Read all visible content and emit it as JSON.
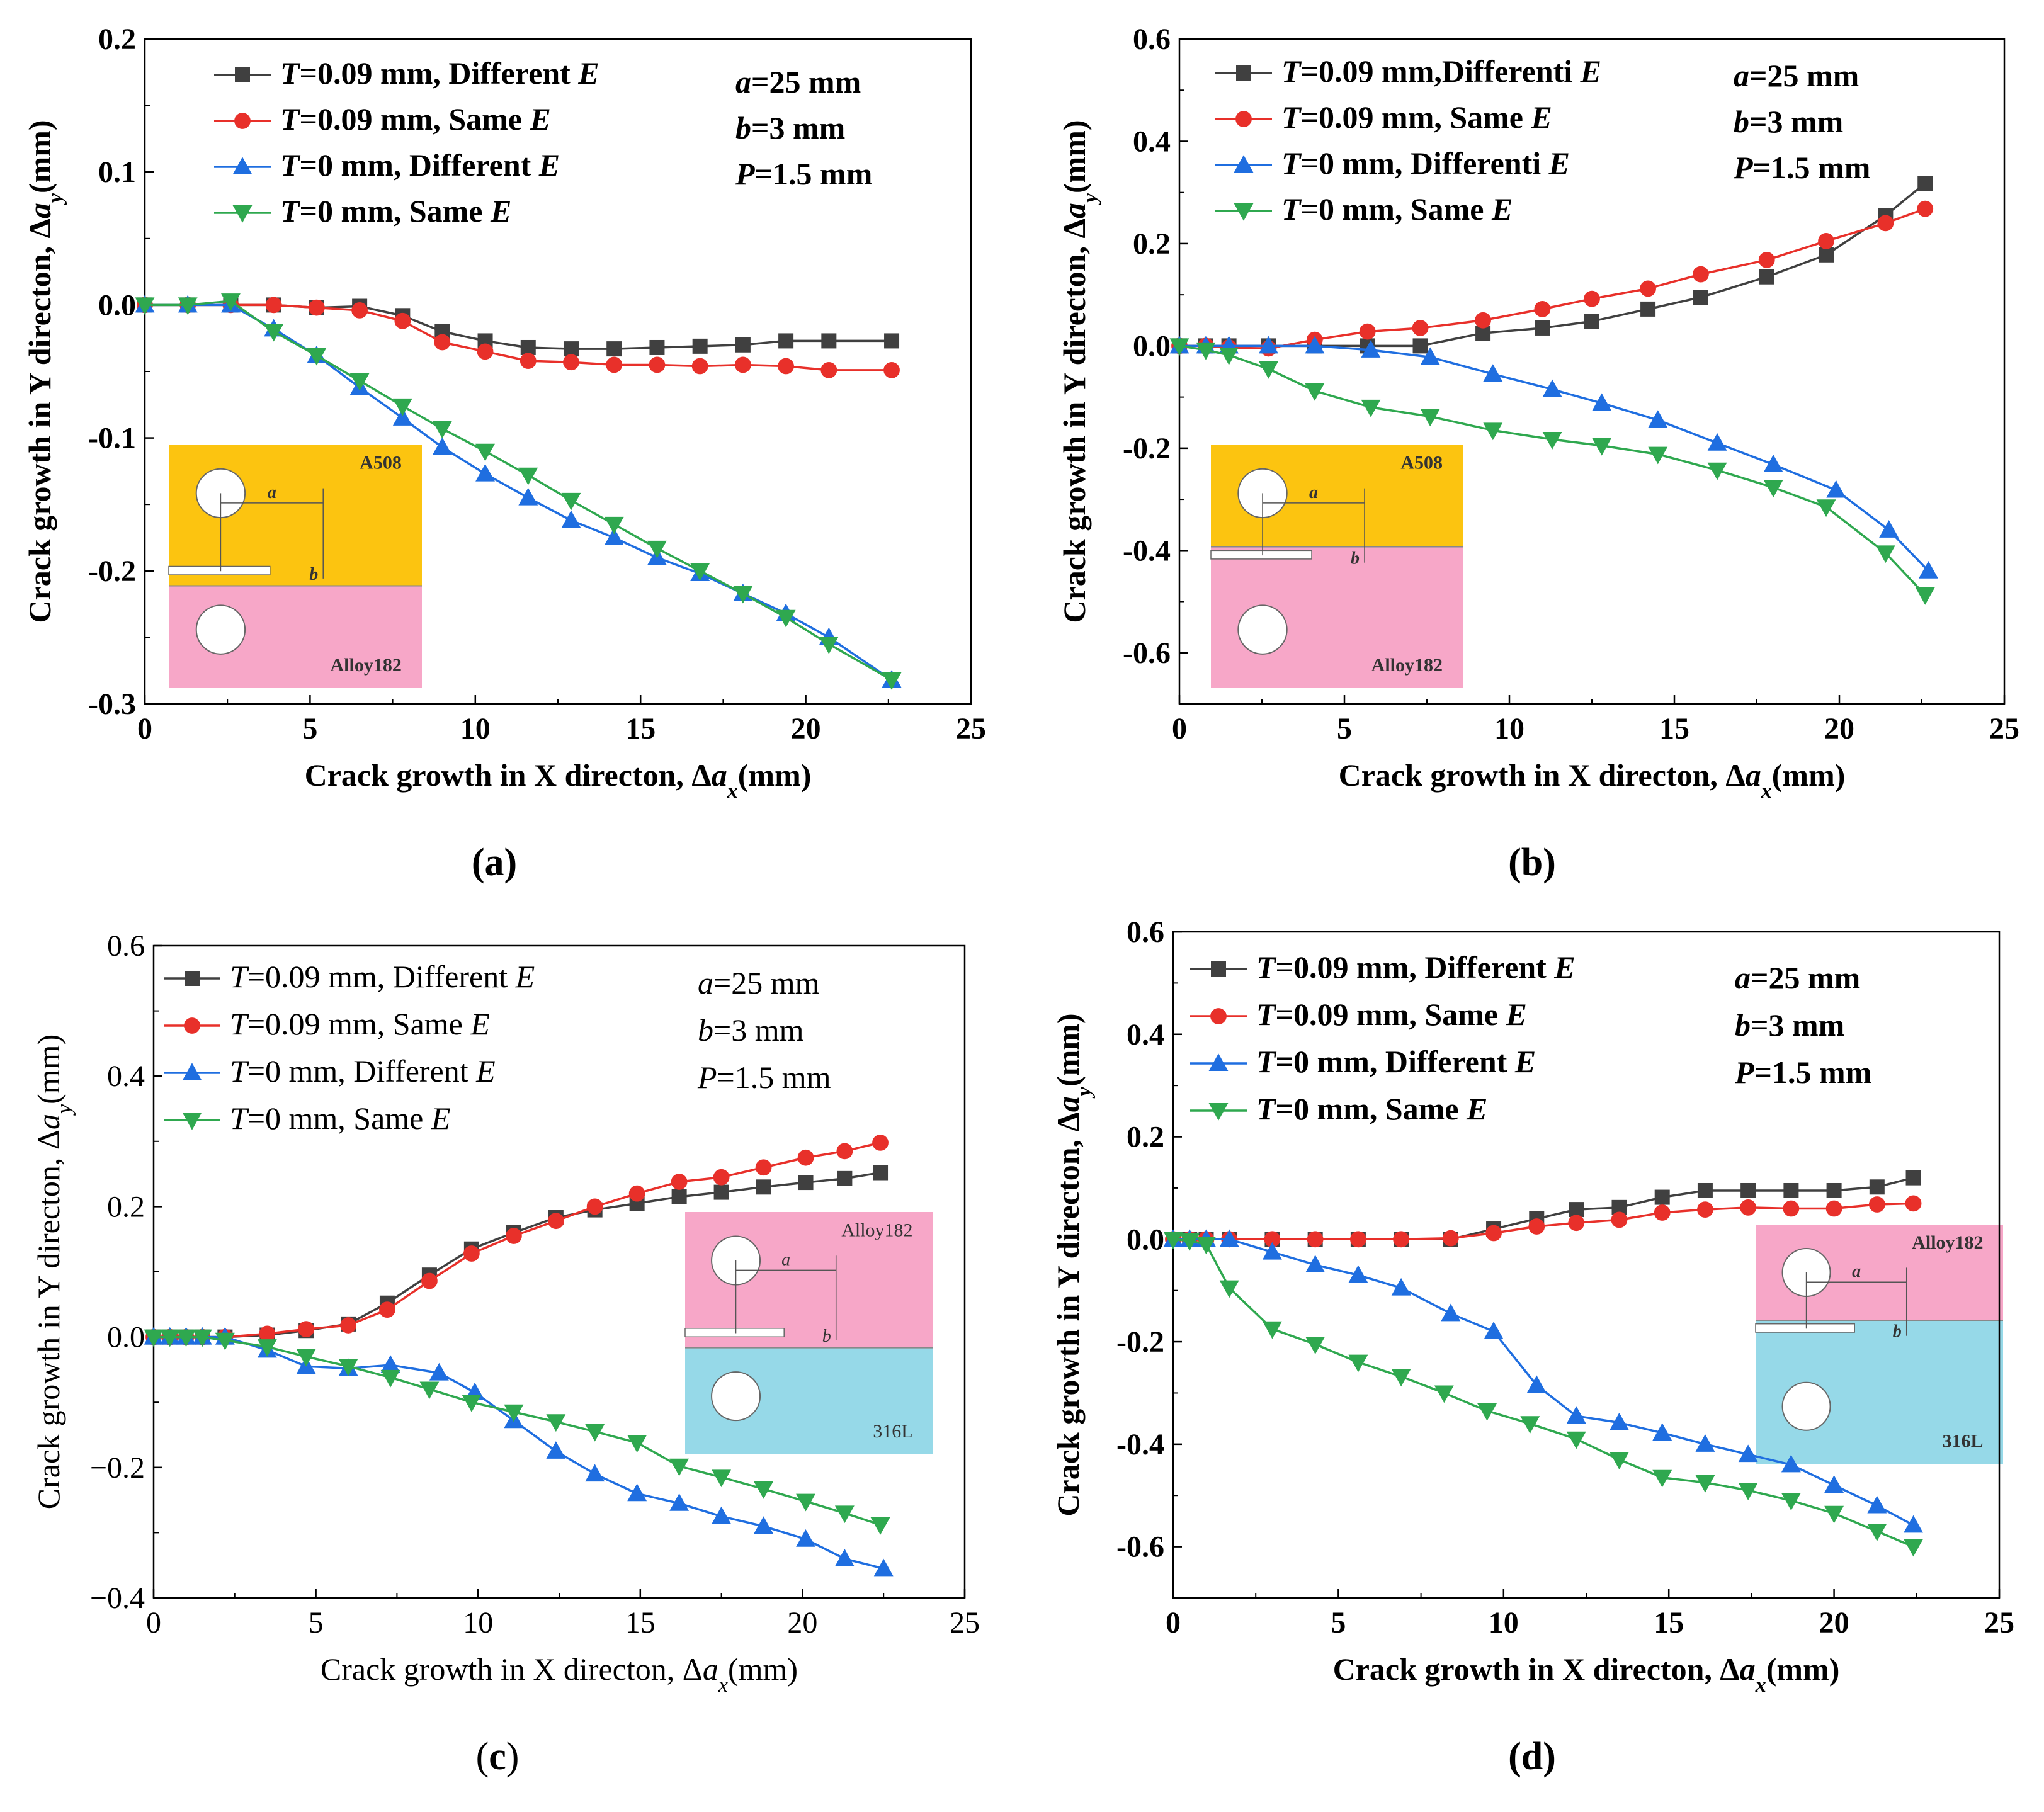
{
  "colors": {
    "gray": "#404040",
    "red": "#e8302a",
    "blue": "#1f6ee0",
    "green": "#2fa84f",
    "A508": "#fcc410",
    "Alloy182": "#f7a7c8",
    "316L": "#96d9e8"
  },
  "chart_data": [
    {
      "id": "a",
      "type": "line",
      "panel_label": "(a)",
      "bold": true,
      "xlabel_text": "Crack growth in X directon, Δ",
      "xlabel_var": "a",
      "xlabel_sub": "x",
      "xlabel_unit": "(mm)",
      "ylabel_text": "Crack growth in Y directon, Δ",
      "ylabel_var": "a",
      "ylabel_sub": "y",
      "ylabel_unit": "(mm)",
      "xlim": [
        0,
        25
      ],
      "ylim": [
        -0.3,
        0.2
      ],
      "xticks": [
        0,
        5,
        10,
        15,
        20,
        25
      ],
      "yticks": [
        -0.3,
        -0.2,
        -0.1,
        0.0,
        0.1,
        0.2
      ],
      "ytick_labels": [
        "-0.3",
        "-0.2",
        "-0.1",
        "0.0",
        "0.1",
        "0.2"
      ],
      "params": [
        {
          "var": "a",
          "text": "=25 mm"
        },
        {
          "var": "b",
          "text": "=3 mm"
        },
        {
          "var": "P",
          "text": "=1.5 mm"
        }
      ],
      "inset": {
        "top": "A508",
        "bottom": "Alloy182",
        "dim_a": "a",
        "dim_b": "b"
      },
      "series": [
        {
          "name": "T=0.09 mm, Different E",
          "var": "T",
          "label": "=0.09 mm, Different ",
          "evar": "E",
          "color": "#404040",
          "marker": "square",
          "x": [
            0,
            1.3,
            2.6,
            3.9,
            5.2,
            6.5,
            7.8,
            9.0,
            10.3,
            11.6,
            12.9,
            14.2,
            15.5,
            16.8,
            18.1,
            19.4,
            20.7,
            22.6
          ],
          "y": [
            0,
            0,
            0,
            0,
            -0.002,
            -0.001,
            -0.008,
            -0.02,
            -0.027,
            -0.032,
            -0.033,
            -0.033,
            -0.032,
            -0.031,
            -0.03,
            -0.027,
            -0.027,
            -0.027
          ]
        },
        {
          "name": "T=0.09 mm, Same E",
          "var": "T",
          "label": "=0.09 mm, Same ",
          "evar": "E",
          "color": "#e8302a",
          "marker": "circle",
          "x": [
            0,
            1.3,
            2.6,
            3.9,
            5.2,
            6.5,
            7.8,
            9.0,
            10.3,
            11.6,
            12.9,
            14.2,
            15.5,
            16.8,
            18.1,
            19.4,
            20.7,
            22.6
          ],
          "y": [
            0,
            0,
            0,
            0,
            -0.002,
            -0.004,
            -0.012,
            -0.028,
            -0.035,
            -0.042,
            -0.043,
            -0.045,
            -0.045,
            -0.046,
            -0.045,
            -0.046,
            -0.049,
            -0.049
          ]
        },
        {
          "name": "T=0 mm, Different E",
          "var": "T",
          "label": "=0 mm, Different ",
          "evar": "E",
          "color": "#1f6ee0",
          "marker": "triangle-up",
          "x": [
            0,
            1.3,
            2.6,
            3.9,
            5.2,
            6.5,
            7.8,
            9.0,
            10.3,
            11.6,
            12.9,
            14.2,
            15.5,
            16.8,
            18.1,
            19.4,
            20.7,
            22.6
          ],
          "y": [
            0,
            0,
            0,
            -0.018,
            -0.038,
            -0.062,
            -0.085,
            -0.107,
            -0.127,
            -0.145,
            -0.162,
            -0.175,
            -0.19,
            -0.202,
            -0.217,
            -0.232,
            -0.25,
            -0.282
          ]
        },
        {
          "name": "T=0 mm, Same E",
          "var": "T",
          "label": "=0 mm, Same ",
          "evar": "E",
          "color": "#2fa84f",
          "marker": "triangle-down",
          "x": [
            0,
            1.3,
            2.6,
            3.9,
            5.2,
            6.5,
            7.8,
            9.0,
            10.3,
            11.6,
            12.9,
            14.2,
            15.5,
            16.8,
            18.1,
            19.4,
            20.7,
            22.6
          ],
          "y": [
            0,
            0,
            0.003,
            -0.02,
            -0.038,
            -0.057,
            -0.076,
            -0.093,
            -0.11,
            -0.128,
            -0.147,
            -0.165,
            -0.183,
            -0.2,
            -0.217,
            -0.235,
            -0.255,
            -0.282
          ]
        }
      ]
    },
    {
      "id": "b",
      "type": "line",
      "panel_label": "(b)",
      "bold": true,
      "xlabel_text": "Crack growth in X directon, Δ",
      "xlabel_var": "a",
      "xlabel_sub": "x",
      "xlabel_unit": "(mm)",
      "ylabel_text": "Crack growth in Y directon, Δ",
      "ylabel_var": "a",
      "ylabel_sub": "y",
      "ylabel_unit": "(mm)",
      "xlim": [
        0,
        25
      ],
      "ylim": [
        -0.7,
        0.6
      ],
      "xticks": [
        0,
        5,
        10,
        15,
        20,
        25
      ],
      "yticks": [
        -0.6,
        -0.4,
        -0.2,
        0.0,
        0.2,
        0.4,
        0.6
      ],
      "ytick_labels": [
        "-0.6",
        "-0.4",
        "-0.2",
        "0.0",
        "0.2",
        "0.4",
        "0.6"
      ],
      "params": [
        {
          "var": "a",
          "text": "=25 mm"
        },
        {
          "var": "b",
          "text": "=3 mm"
        },
        {
          "var": "P",
          "text": "=1.5 mm"
        }
      ],
      "inset": {
        "top": "A508",
        "bottom": "Alloy182",
        "dim_a": "a",
        "dim_b": "b"
      },
      "series": [
        {
          "name": "T=0.09 mm,Differenti E",
          "var": "T",
          "label": "=0.09 mm,Differenti ",
          "evar": "E",
          "color": "#404040",
          "marker": "square",
          "x": [
            0,
            0.8,
            1.5,
            2.7,
            4.1,
            5.7,
            7.3,
            9.2,
            11.0,
            12.5,
            14.2,
            15.8,
            17.8,
            19.6,
            21.4,
            22.6
          ],
          "y": [
            0,
            0,
            0,
            0,
            0,
            0,
            0,
            0.025,
            0.035,
            0.048,
            0.072,
            0.095,
            0.135,
            0.178,
            0.255,
            0.318
          ]
        },
        {
          "name": "T=0.09 mm, Same E",
          "var": "T",
          "label": "=0.09 mm, Same ",
          "evar": "E",
          "color": "#e8302a",
          "marker": "circle",
          "x": [
            0,
            0.8,
            1.5,
            2.7,
            4.1,
            5.7,
            7.3,
            9.2,
            11.0,
            12.5,
            14.2,
            15.8,
            17.8,
            19.6,
            21.4,
            22.6
          ],
          "y": [
            0,
            0,
            -0.003,
            -0.005,
            0.012,
            0.028,
            0.035,
            0.05,
            0.072,
            0.092,
            0.112,
            0.14,
            0.168,
            0.205,
            0.24,
            0.268
          ]
        },
        {
          "name": "T=0 mm, Differenti E",
          "var": "T",
          "label": "=0 mm, Differenti ",
          "evar": "E",
          "color": "#1f6ee0",
          "marker": "triangle-up",
          "x": [
            0,
            0.8,
            1.5,
            2.7,
            4.1,
            5.8,
            7.6,
            9.5,
            11.3,
            12.8,
            14.5,
            16.3,
            18.0,
            19.9,
            21.5,
            22.7
          ],
          "y": [
            0,
            0,
            0,
            0,
            0,
            -0.008,
            -0.022,
            -0.055,
            -0.085,
            -0.112,
            -0.145,
            -0.19,
            -0.232,
            -0.282,
            -0.36,
            -0.44
          ]
        },
        {
          "name": "T=0 mm, Same E",
          "var": "T",
          "label": "=0 mm, Same ",
          "evar": "E",
          "color": "#2fa84f",
          "marker": "triangle-down",
          "x": [
            0,
            0.8,
            1.5,
            2.7,
            4.1,
            5.8,
            7.6,
            9.5,
            11.3,
            12.8,
            14.5,
            16.3,
            18.0,
            19.6,
            21.4,
            22.6
          ],
          "y": [
            0,
            -0.008,
            -0.018,
            -0.045,
            -0.088,
            -0.12,
            -0.138,
            -0.165,
            -0.183,
            -0.195,
            -0.212,
            -0.243,
            -0.277,
            -0.315,
            -0.405,
            -0.487
          ]
        }
      ]
    },
    {
      "id": "c",
      "type": "line",
      "panel_label": "(c)",
      "bold": false,
      "xlabel_text": "Crack growth in X directon, Δ",
      "xlabel_var": "a",
      "xlabel_sub": "x",
      "xlabel_unit": "(mm)",
      "ylabel_text": "Crack growth in Y directon, Δ",
      "ylabel_var": "a",
      "ylabel_sub": "y",
      "ylabel_unit": "(mm)",
      "xlim": [
        0,
        25
      ],
      "ylim": [
        -0.4,
        0.6
      ],
      "xticks": [
        0,
        5,
        10,
        15,
        20,
        25
      ],
      "yticks": [
        -0.4,
        -0.2,
        0.0,
        0.2,
        0.4,
        0.6
      ],
      "ytick_labels": [
        "−0.4",
        "−0.2",
        "0.0",
        "0.2",
        "0.4",
        "0.6"
      ],
      "params": [
        {
          "var": "a",
          "text": "=25 mm"
        },
        {
          "var": "b",
          "text": "=3 mm"
        },
        {
          "var": "P",
          "text": "=1.5 mm"
        }
      ],
      "inset": {
        "top": "Alloy182",
        "bottom": "316L",
        "dim_a": "a",
        "dim_b": "b"
      },
      "series": [
        {
          "name": "T=0.09 mm,  Different E",
          "var": "T",
          "label": "=0.09 mm,  Different ",
          "evar": "E",
          "color": "#404040",
          "marker": "square",
          "x": [
            0,
            0.5,
            1.0,
            1.5,
            2.2,
            3.5,
            4.7,
            6.0,
            7.2,
            8.5,
            9.8,
            11.1,
            12.4,
            13.6,
            14.9,
            16.2,
            17.5,
            18.8,
            20.1,
            21.3,
            22.4
          ],
          "y": [
            0,
            0,
            0,
            0,
            0,
            0.003,
            0.01,
            0.02,
            0.052,
            0.095,
            0.135,
            0.16,
            0.183,
            0.195,
            0.205,
            0.215,
            0.222,
            0.23,
            0.237,
            0.243,
            0.252
          ]
        },
        {
          "name": "T=0.09 mm,  Same E",
          "var": "T",
          "label": "=0.09 mm,  Same ",
          "evar": "E",
          "color": "#e8302a",
          "marker": "circle",
          "x": [
            0,
            0.5,
            1.0,
            1.5,
            2.2,
            3.5,
            4.7,
            6.0,
            7.2,
            8.5,
            9.8,
            11.1,
            12.4,
            13.6,
            14.9,
            16.2,
            17.5,
            18.8,
            20.1,
            21.3,
            22.4
          ],
          "y": [
            0,
            0,
            0,
            0,
            0,
            0.005,
            0.012,
            0.018,
            0.042,
            0.086,
            0.128,
            0.155,
            0.178,
            0.2,
            0.22,
            0.238,
            0.245,
            0.26,
            0.275,
            0.285,
            0.298
          ]
        },
        {
          "name": "T=0 mm, Different E",
          "var": "T",
          "label": "=0 mm, Different ",
          "evar": "E",
          "color": "#1f6ee0",
          "marker": "triangle-up",
          "x": [
            0,
            0.5,
            1.0,
            1.5,
            2.2,
            3.5,
            4.7,
            6.0,
            7.3,
            8.8,
            9.9,
            11.1,
            12.4,
            13.6,
            14.9,
            16.2,
            17.5,
            18.8,
            20.1,
            21.3,
            22.5
          ],
          "y": [
            0,
            0,
            0,
            0,
            0,
            -0.02,
            -0.045,
            -0.048,
            -0.043,
            -0.055,
            -0.085,
            -0.128,
            -0.175,
            -0.21,
            -0.24,
            -0.255,
            -0.275,
            -0.29,
            -0.31,
            -0.34,
            -0.355
          ]
        },
        {
          "name": "T=0 mm, Same E",
          "var": "T",
          "label": "=0 mm, Same ",
          "evar": "E",
          "color": "#2fa84f",
          "marker": "triangle-down",
          "x": [
            0,
            0.5,
            1.0,
            1.5,
            2.2,
            3.5,
            4.7,
            6.0,
            7.3,
            8.5,
            9.8,
            11.1,
            12.4,
            13.6,
            14.9,
            16.2,
            17.5,
            18.8,
            20.1,
            21.3,
            22.4
          ],
          "y": [
            0,
            0,
            0,
            0,
            -0.005,
            -0.015,
            -0.03,
            -0.045,
            -0.062,
            -0.08,
            -0.1,
            -0.115,
            -0.13,
            -0.145,
            -0.162,
            -0.198,
            -0.215,
            -0.233,
            -0.252,
            -0.27,
            -0.288
          ]
        }
      ]
    },
    {
      "id": "d",
      "type": "line",
      "panel_label": "(d)",
      "bold": true,
      "xlabel_text": "Crack growth in X directon, Δ",
      "xlabel_var": "a",
      "xlabel_sub": "x",
      "xlabel_unit": "(mm)",
      "ylabel_text": "Crack growth in Y directon, Δ",
      "ylabel_var": "a",
      "ylabel_sub": "y",
      "ylabel_unit": "(mm)",
      "xlim": [
        0,
        25
      ],
      "ylim": [
        -0.7,
        0.6
      ],
      "xticks": [
        0,
        5,
        10,
        15,
        20,
        25
      ],
      "yticks": [
        -0.6,
        -0.4,
        -0.2,
        0.0,
        0.2,
        0.4,
        0.6
      ],
      "ytick_labels": [
        "-0.6",
        "-0.4",
        "-0.2",
        "0.0",
        "0.2",
        "0.4",
        "0.6"
      ],
      "params": [
        {
          "var": "a",
          "text": "=25 mm"
        },
        {
          "var": "b",
          "text": "=3 mm"
        },
        {
          "var": "P",
          "text": "=1.5 mm"
        }
      ],
      "inset": {
        "top": "Alloy182",
        "bottom": "316L",
        "dim_a": "a",
        "dim_b": "b"
      },
      "series": [
        {
          "name": "T=0.09 mm, Different E",
          "var": "T",
          "label": "=0.09 mm, Different ",
          "evar": "E",
          "color": "#404040",
          "marker": "square",
          "x": [
            0,
            0.5,
            1.0,
            1.7,
            3.0,
            4.3,
            5.6,
            6.9,
            8.4,
            9.7,
            11.0,
            12.2,
            13.5,
            14.8,
            16.1,
            17.4,
            18.7,
            20.0,
            21.3,
            22.4
          ],
          "y": [
            0,
            0,
            0,
            0,
            0,
            0,
            0,
            0,
            0,
            0.02,
            0.04,
            0.058,
            0.062,
            0.082,
            0.095,
            0.095,
            0.095,
            0.095,
            0.102,
            0.12
          ]
        },
        {
          "name": "T=0.09 mm, Same E",
          "var": "T",
          "label": "=0.09 mm, Same ",
          "evar": "E",
          "color": "#e8302a",
          "marker": "circle",
          "x": [
            0,
            0.5,
            1.0,
            1.7,
            3.0,
            4.3,
            5.6,
            6.9,
            8.4,
            9.7,
            11.0,
            12.2,
            13.5,
            14.8,
            16.1,
            17.4,
            18.7,
            20.0,
            21.3,
            22.4
          ],
          "y": [
            0,
            0,
            0,
            0,
            0,
            0,
            0,
            0,
            0.002,
            0.012,
            0.025,
            0.032,
            0.038,
            0.052,
            0.058,
            0.062,
            0.06,
            0.06,
            0.068,
            0.07
          ]
        },
        {
          "name": "T=0 mm, Different E",
          "var": "T",
          "label": "=0 mm, Different ",
          "evar": "E",
          "color": "#1f6ee0",
          "marker": "triangle-up",
          "x": [
            0,
            0.5,
            1.0,
            1.7,
            3.0,
            4.3,
            5.6,
            6.9,
            8.4,
            9.7,
            11.0,
            12.2,
            13.5,
            14.8,
            16.1,
            17.4,
            18.7,
            20.0,
            21.3,
            22.4
          ],
          "y": [
            0,
            0,
            0,
            0,
            -0.025,
            -0.05,
            -0.07,
            -0.095,
            -0.145,
            -0.18,
            -0.285,
            -0.345,
            -0.358,
            -0.378,
            -0.4,
            -0.42,
            -0.44,
            -0.48,
            -0.52,
            -0.558
          ]
        },
        {
          "name": "T=0 mm, Same E",
          "var": "T",
          "label": "=0 mm, Same ",
          "evar": "E",
          "color": "#2fa84f",
          "marker": "triangle-down",
          "x": [
            0,
            0.5,
            1.0,
            1.7,
            3.0,
            4.3,
            5.6,
            6.9,
            8.2,
            9.5,
            10.8,
            12.2,
            13.5,
            14.8,
            16.1,
            17.4,
            18.7,
            20.0,
            21.3,
            22.4
          ],
          "y": [
            0,
            -0.003,
            -0.01,
            -0.095,
            -0.175,
            -0.205,
            -0.24,
            -0.268,
            -0.3,
            -0.335,
            -0.36,
            -0.39,
            -0.43,
            -0.465,
            -0.475,
            -0.49,
            -0.51,
            -0.535,
            -0.57,
            -0.6
          ]
        }
      ]
    }
  ]
}
